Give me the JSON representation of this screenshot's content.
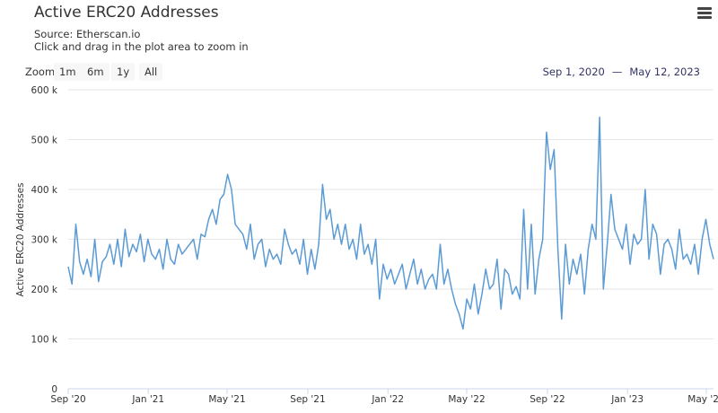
{
  "header": {
    "title": "Active ERC20 Addresses",
    "source": "Source: Etherscan.io",
    "hint": "Click and drag in the plot area to zoom in",
    "menu_icon": "hamburger-menu-icon"
  },
  "range_selector": {
    "label": "Zoom",
    "buttons": [
      "1m",
      "6m",
      "1y",
      "All"
    ],
    "from": "Sep 1, 2020",
    "separator": "—",
    "to": "May 12, 2023"
  },
  "colors": {
    "line": "#5b9bd5",
    "grid": "#e6e6e6"
  },
  "chart_data": {
    "type": "line",
    "title": "Active ERC20 Addresses",
    "subtitle": "Source: Etherscan.io",
    "xlabel": "",
    "ylabel": "Active ERC20 Addresses",
    "ylim": [
      0,
      600000
    ],
    "y_ticks": [
      0,
      100000,
      200000,
      300000,
      400000,
      500000,
      600000
    ],
    "y_tick_labels": [
      "0",
      "100 k",
      "200 k",
      "300 k",
      "400 k",
      "500 k",
      "600 k"
    ],
    "x_range": [
      "2020-09-01",
      "2023-05-12"
    ],
    "x_ticks": [
      {
        "date": "2020-09-01",
        "label": "Sep '20"
      },
      {
        "date": "2021-01-01",
        "label": "Jan '21"
      },
      {
        "date": "2021-05-01",
        "label": "May '21"
      },
      {
        "date": "2021-09-01",
        "label": "Sep '21"
      },
      {
        "date": "2022-01-01",
        "label": "Jan '22"
      },
      {
        "date": "2022-05-01",
        "label": "May '22"
      },
      {
        "date": "2022-09-01",
        "label": "Sep '22"
      },
      {
        "date": "2023-01-01",
        "label": "Jan '23"
      },
      {
        "date": "2023-05-01",
        "label": "May '23"
      }
    ],
    "grid": true,
    "legend": "none",
    "series": [
      {
        "name": "Active ERC20 Addresses",
        "values_in_thousands_evenly_spaced": [
          245,
          210,
          330,
          255,
          230,
          260,
          225,
          300,
          215,
          255,
          265,
          290,
          250,
          300,
          245,
          320,
          265,
          290,
          275,
          310,
          255,
          300,
          270,
          260,
          280,
          240,
          300,
          260,
          250,
          290,
          270,
          280,
          290,
          300,
          260,
          310,
          305,
          340,
          360,
          330,
          380,
          390,
          430,
          400,
          330,
          320,
          310,
          280,
          330,
          260,
          290,
          300,
          245,
          280,
          260,
          270,
          250,
          320,
          290,
          270,
          280,
          250,
          300,
          230,
          280,
          240,
          290,
          410,
          340,
          360,
          300,
          330,
          290,
          330,
          280,
          300,
          260,
          330,
          270,
          290,
          250,
          300,
          180,
          250,
          220,
          240,
          210,
          230,
          250,
          200,
          230,
          260,
          210,
          240,
          200,
          220,
          230,
          200,
          290,
          210,
          240,
          200,
          170,
          150,
          120,
          180,
          160,
          210,
          150,
          190,
          240,
          200,
          210,
          260,
          160,
          240,
          230,
          190,
          205,
          180,
          360,
          200,
          330,
          190,
          260,
          300,
          515,
          440,
          480,
          280,
          140,
          290,
          210,
          260,
          230,
          270,
          190,
          280,
          330,
          300,
          545,
          200,
          290,
          390,
          320,
          300,
          280,
          330,
          250,
          310,
          290,
          300,
          400,
          260,
          330,
          310,
          230,
          290,
          300,
          280,
          240,
          320,
          260,
          270,
          250,
          290,
          230,
          300,
          340,
          290,
          260
        ]
      }
    ]
  }
}
